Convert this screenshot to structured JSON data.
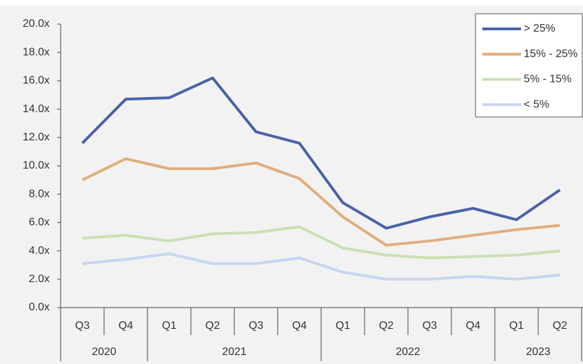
{
  "chart_data": {
    "type": "line",
    "groups": [
      {
        "label": "2020",
        "quarters": [
          "Q3",
          "Q4"
        ]
      },
      {
        "label": "2021",
        "quarters": [
          "Q1",
          "Q2",
          "Q3",
          "Q4"
        ]
      },
      {
        "label": "2022",
        "quarters": [
          "Q1",
          "Q2",
          "Q3",
          "Q4"
        ]
      },
      {
        "label": "2023",
        "quarters": [
          "Q1",
          "Q2"
        ]
      }
    ],
    "series": [
      {
        "name": "> 25%",
        "color": "#4a62a8",
        "values": [
          11.6,
          14.7,
          14.8,
          16.2,
          12.4,
          11.6,
          7.4,
          5.6,
          6.4,
          7.0,
          6.2,
          8.3
        ]
      },
      {
        "name": "15% - 25%",
        "color": "#e0ad7e",
        "values": [
          9.0,
          10.5,
          9.8,
          9.8,
          10.2,
          9.1,
          6.4,
          4.4,
          4.7,
          5.1,
          5.5,
          5.8
        ]
      },
      {
        "name": "5% - 15%",
        "color": "#c9e0b5",
        "values": [
          4.9,
          5.1,
          4.7,
          5.2,
          5.3,
          5.7,
          4.2,
          3.7,
          3.5,
          3.6,
          3.7,
          4.0
        ]
      },
      {
        "name": "< 5%",
        "color": "#c5d6f2",
        "values": [
          3.1,
          3.4,
          3.8,
          3.1,
          3.1,
          3.5,
          2.5,
          2.0,
          2.0,
          2.2,
          2.0,
          2.3
        ]
      }
    ],
    "ylim": [
      0,
      20
    ],
    "yticks": [
      {
        "value": 0,
        "label": "0.0x"
      },
      {
        "value": 2,
        "label": "2.0x"
      },
      {
        "value": 4,
        "label": "4.0x"
      },
      {
        "value": 6,
        "label": "6.0x"
      },
      {
        "value": 8,
        "label": "8.0x"
      },
      {
        "value": 10,
        "label": "10.0x"
      },
      {
        "value": 12,
        "label": "12.0x"
      },
      {
        "value": 14,
        "label": "14.0x"
      },
      {
        "value": 16,
        "label": "16.0x"
      },
      {
        "value": 18,
        "label": "18.0x"
      },
      {
        "value": 20,
        "label": "20.0x"
      }
    ],
    "legend": "top-right"
  }
}
